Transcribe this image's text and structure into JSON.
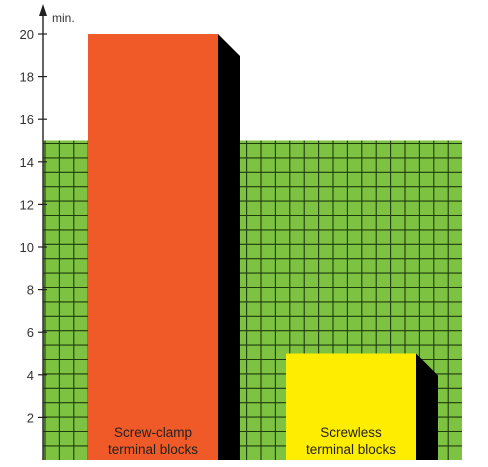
{
  "chart_data": {
    "type": "bar",
    "categories": [
      "Screw-clamp terminal blocks",
      "Screwless terminal blocks"
    ],
    "category_lines": [
      [
        "Screw-clamp",
        "terminal blocks"
      ],
      [
        "Screwless",
        "terminal blocks"
      ]
    ],
    "values": [
      20,
      5
    ],
    "bar_colors": [
      "#f05a28",
      "#ffed00"
    ],
    "shadow_color": "#000000",
    "background_band": {
      "value": 15,
      "color": "#7dc241",
      "grid_color": "#1f3a0f"
    },
    "y_unit": "min.",
    "y_ticks": [
      2,
      4,
      6,
      8,
      10,
      12,
      14,
      16,
      18,
      20
    ],
    "ylim": [
      0,
      21
    ],
    "grid": true
  }
}
